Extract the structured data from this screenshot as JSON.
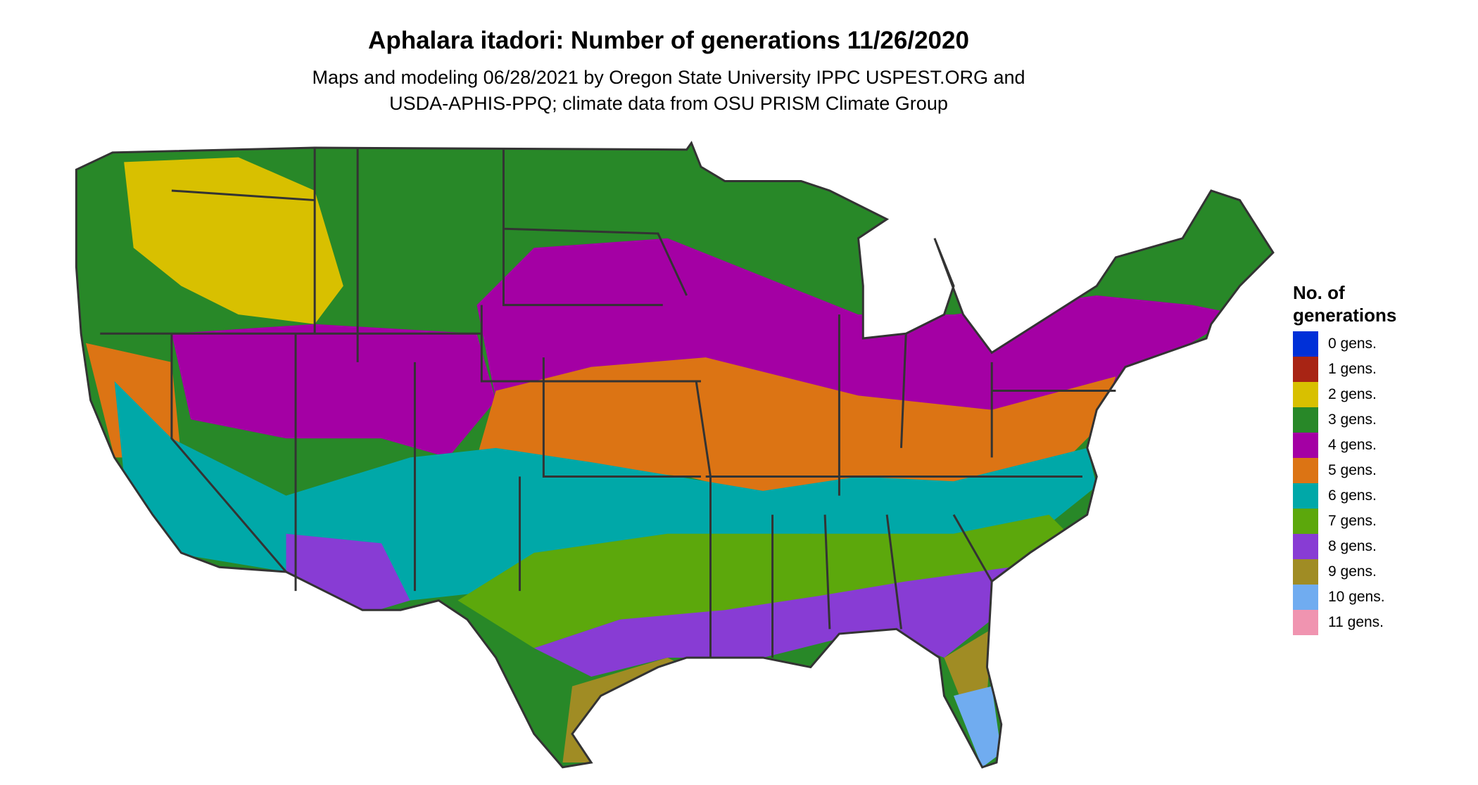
{
  "title": "Aphalara itadori: Number of generations 11/26/2020",
  "subtitle": [
    "Maps and modeling 06/28/2021 by Oregon State University IPPC USPEST.ORG and",
    "USDA-APHIS-PPQ; climate data from OSU PRISM Climate Group"
  ],
  "legend": {
    "title": [
      "No. of",
      "generations"
    ],
    "items": [
      {
        "label": "0 gens.",
        "color": "#0030d8"
      },
      {
        "label": "1 gens.",
        "color": "#a82414"
      },
      {
        "label": "2 gens.",
        "color": "#d8c000"
      },
      {
        "label": "3 gens.",
        "color": "#288828"
      },
      {
        "label": "4 gens.",
        "color": "#a400a4"
      },
      {
        "label": "5 gens.",
        "color": "#dc7414"
      },
      {
        "label": "6 gens.",
        "color": "#00a8a8"
      },
      {
        "label": "7 gens.",
        "color": "#5ca80c"
      },
      {
        "label": "8 gens.",
        "color": "#883cd4"
      },
      {
        "label": "9 gens.",
        "color": "#a08c24"
      },
      {
        "label": "10 gens.",
        "color": "#70acf0"
      },
      {
        "label": "11 gens.",
        "color": "#f094b0"
      }
    ]
  }
}
